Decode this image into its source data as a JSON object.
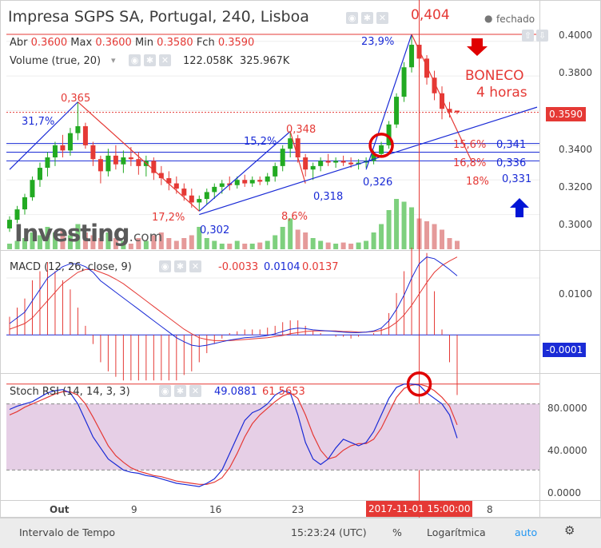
{
  "header": {
    "title": "Impresa SGPS SA, Portugal, 240, Lisboa",
    "status": "fechado",
    "ohlc": {
      "o_label": "Abr",
      "o": "0.3600",
      "h_label": "Max",
      "h": "0.3600",
      "l_label": "Min",
      "l": "0.3580",
      "c_label": "Fch",
      "c": "0.3590"
    },
    "volume_label": "Volume (true, 20)",
    "volume_v1": "122.058K",
    "volume_v2": "325.967K",
    "watermark": "Investing",
    "watermark_suffix": ".com"
  },
  "macd": {
    "label": "MACD (12, 26, close, 9)",
    "v1": "-0.0033",
    "v2": "0.0104",
    "v3": "0.0137"
  },
  "stoch": {
    "label": "Stoch RSI (14, 14, 3, 3)",
    "v1": "49.0881",
    "v2": "61.5653"
  },
  "annotations": {
    "peak_high": "0,404",
    "pct_a": "31,7%",
    "pct_b": "17,2%",
    "pct_c": "15,2%",
    "pct_d": "8,6%",
    "pct_e": "23,9%",
    "level_365": "0,365",
    "level_302": "0,302",
    "level_348": "0,348",
    "level_318": "0,318",
    "level_326": "0,326",
    "boneco_1": "BONECO",
    "boneco_2": "4 horas",
    "fib_1": "15,6%",
    "fib_1v": "0,341",
    "fib_2": "16,8%",
    "fib_2v": "0,336",
    "fib_3": "18%",
    "fib_3v": "0,331"
  },
  "price_axis": {
    "ticks": [
      "0.4000",
      "0.3800",
      "0.3600",
      "0.3400",
      "0.3200",
      "0.3000"
    ],
    "current": "0.3590"
  },
  "macd_axis": {
    "ticks": [
      "0.0100"
    ],
    "current": "-0.0001"
  },
  "stoch_axis": {
    "ticks": [
      "80.0000",
      "40.0000",
      "0.0000"
    ]
  },
  "time_axis": {
    "ticks": [
      "Out",
      "9",
      "16",
      "23",
      "8"
    ],
    "highlight": "2017-11-01 15:00:00"
  },
  "bottom_bar": {
    "left": "Intervalo de Tempo",
    "time": "15:23:24 (UTC)",
    "pct": "%",
    "log": "Logarítmica",
    "auto": "auto"
  },
  "colors": {
    "up": "#22aa22",
    "down": "#e53935",
    "blue": "#1a2bd6",
    "red": "#e53935",
    "vol_up": "#7ed07e",
    "vol_down": "#e59a9a",
    "stoch_band": "#e6cfe6"
  },
  "chart_data": [
    {
      "type": "candlestick",
      "title": "Impresa SGPS SA, Portugal, 240, Lisboa",
      "ylim": [
        0.28,
        0.41
      ],
      "x_ticks": [
        "Out",
        "9",
        "16",
        "23",
        "8"
      ],
      "candles": [
        {
          "o": 0.292,
          "h": 0.299,
          "l": 0.29,
          "c": 0.297
        },
        {
          "o": 0.297,
          "h": 0.305,
          "l": 0.295,
          "c": 0.303
        },
        {
          "o": 0.303,
          "h": 0.312,
          "l": 0.3,
          "c": 0.31
        },
        {
          "o": 0.31,
          "h": 0.322,
          "l": 0.308,
          "c": 0.32
        },
        {
          "o": 0.32,
          "h": 0.33,
          "l": 0.316,
          "c": 0.327
        },
        {
          "o": 0.327,
          "h": 0.336,
          "l": 0.322,
          "c": 0.333
        },
        {
          "o": 0.333,
          "h": 0.342,
          "l": 0.328,
          "c": 0.34
        },
        {
          "o": 0.34,
          "h": 0.346,
          "l": 0.333,
          "c": 0.337
        },
        {
          "o": 0.337,
          "h": 0.35,
          "l": 0.334,
          "c": 0.347
        },
        {
          "o": 0.347,
          "h": 0.365,
          "l": 0.343,
          "c": 0.351
        },
        {
          "o": 0.351,
          "h": 0.353,
          "l": 0.338,
          "c": 0.34
        },
        {
          "o": 0.34,
          "h": 0.342,
          "l": 0.328,
          "c": 0.332
        },
        {
          "o": 0.332,
          "h": 0.334,
          "l": 0.318,
          "c": 0.325
        },
        {
          "o": 0.325,
          "h": 0.338,
          "l": 0.322,
          "c": 0.334
        },
        {
          "o": 0.334,
          "h": 0.34,
          "l": 0.326,
          "c": 0.329
        },
        {
          "o": 0.329,
          "h": 0.337,
          "l": 0.324,
          "c": 0.333
        },
        {
          "o": 0.333,
          "h": 0.339,
          "l": 0.328,
          "c": 0.332
        },
        {
          "o": 0.332,
          "h": 0.336,
          "l": 0.323,
          "c": 0.328
        },
        {
          "o": 0.328,
          "h": 0.334,
          "l": 0.322,
          "c": 0.331
        },
        {
          "o": 0.331,
          "h": 0.333,
          "l": 0.32,
          "c": 0.324
        },
        {
          "o": 0.324,
          "h": 0.328,
          "l": 0.317,
          "c": 0.321
        },
        {
          "o": 0.321,
          "h": 0.325,
          "l": 0.314,
          "c": 0.318
        },
        {
          "o": 0.318,
          "h": 0.322,
          "l": 0.312,
          "c": 0.315
        },
        {
          "o": 0.315,
          "h": 0.318,
          "l": 0.308,
          "c": 0.311
        },
        {
          "o": 0.311,
          "h": 0.315,
          "l": 0.304,
          "c": 0.307
        },
        {
          "o": 0.307,
          "h": 0.311,
          "l": 0.302,
          "c": 0.309
        },
        {
          "o": 0.309,
          "h": 0.315,
          "l": 0.306,
          "c": 0.313
        },
        {
          "o": 0.313,
          "h": 0.318,
          "l": 0.309,
          "c": 0.316
        },
        {
          "o": 0.316,
          "h": 0.32,
          "l": 0.312,
          "c": 0.318
        },
        {
          "o": 0.318,
          "h": 0.322,
          "l": 0.314,
          "c": 0.317
        },
        {
          "o": 0.317,
          "h": 0.322,
          "l": 0.315,
          "c": 0.32
        },
        {
          "o": 0.32,
          "h": 0.323,
          "l": 0.316,
          "c": 0.318
        },
        {
          "o": 0.318,
          "h": 0.322,
          "l": 0.316,
          "c": 0.32
        },
        {
          "o": 0.32,
          "h": 0.322,
          "l": 0.317,
          "c": 0.319
        },
        {
          "o": 0.319,
          "h": 0.324,
          "l": 0.317,
          "c": 0.322
        },
        {
          "o": 0.322,
          "h": 0.33,
          "l": 0.319,
          "c": 0.328
        },
        {
          "o": 0.328,
          "h": 0.34,
          "l": 0.325,
          "c": 0.338
        },
        {
          "o": 0.338,
          "h": 0.348,
          "l": 0.333,
          "c": 0.344
        },
        {
          "o": 0.344,
          "h": 0.346,
          "l": 0.33,
          "c": 0.333
        },
        {
          "o": 0.333,
          "h": 0.335,
          "l": 0.322,
          "c": 0.326
        },
        {
          "o": 0.326,
          "h": 0.33,
          "l": 0.32,
          "c": 0.328
        },
        {
          "o": 0.328,
          "h": 0.333,
          "l": 0.325,
          "c": 0.331
        },
        {
          "o": 0.331,
          "h": 0.335,
          "l": 0.328,
          "c": 0.33
        },
        {
          "o": 0.33,
          "h": 0.333,
          "l": 0.327,
          "c": 0.331
        },
        {
          "o": 0.331,
          "h": 0.334,
          "l": 0.328,
          "c": 0.33
        },
        {
          "o": 0.33,
          "h": 0.333,
          "l": 0.327,
          "c": 0.329
        },
        {
          "o": 0.329,
          "h": 0.332,
          "l": 0.326,
          "c": 0.33
        },
        {
          "o": 0.33,
          "h": 0.333,
          "l": 0.327,
          "c": 0.331
        },
        {
          "o": 0.331,
          "h": 0.337,
          "l": 0.329,
          "c": 0.335
        },
        {
          "o": 0.335,
          "h": 0.342,
          "l": 0.333,
          "c": 0.34
        },
        {
          "o": 0.34,
          "h": 0.354,
          "l": 0.338,
          "c": 0.352
        },
        {
          "o": 0.352,
          "h": 0.37,
          "l": 0.35,
          "c": 0.368
        },
        {
          "o": 0.368,
          "h": 0.388,
          "l": 0.365,
          "c": 0.385
        },
        {
          "o": 0.385,
          "h": 0.404,
          "l": 0.382,
          "c": 0.398
        },
        {
          "o": 0.398,
          "h": 0.402,
          "l": 0.385,
          "c": 0.39
        },
        {
          "o": 0.39,
          "h": 0.392,
          "l": 0.375,
          "c": 0.379
        },
        {
          "o": 0.379,
          "h": 0.383,
          "l": 0.366,
          "c": 0.37
        },
        {
          "o": 0.37,
          "h": 0.374,
          "l": 0.355,
          "c": 0.361
        },
        {
          "o": 0.361,
          "h": 0.365,
          "l": 0.356,
          "c": 0.359
        },
        {
          "o": 0.36,
          "h": 0.36,
          "l": 0.358,
          "c": 0.359
        }
      ],
      "volume_ratio": [
        0.1,
        0.15,
        0.2,
        0.3,
        0.25,
        0.4,
        0.3,
        0.35,
        0.25,
        0.45,
        0.3,
        0.25,
        0.2,
        0.3,
        0.2,
        0.15,
        0.1,
        0.2,
        0.15,
        0.25,
        0.3,
        0.2,
        0.15,
        0.2,
        0.25,
        0.4,
        0.2,
        0.15,
        0.1,
        0.1,
        0.15,
        0.1,
        0.1,
        0.12,
        0.15,
        0.25,
        0.4,
        0.55,
        0.35,
        0.3,
        0.2,
        0.15,
        0.12,
        0.1,
        0.12,
        0.1,
        0.12,
        0.15,
        0.3,
        0.45,
        0.7,
        0.9,
        0.85,
        0.75,
        0.55,
        0.5,
        0.45,
        0.35,
        0.2,
        0.15
      ]
    },
    {
      "type": "line",
      "title": "MACD (12, 26, close, 9)",
      "ylim": [
        -0.006,
        0.0145
      ],
      "series": [
        {
          "name": "MACD",
          "values": [
            0.002,
            0.003,
            0.004,
            0.006,
            0.008,
            0.01,
            0.011,
            0.012,
            0.0125,
            0.0125,
            0.012,
            0.011,
            0.0095,
            0.0085,
            0.0075,
            0.0065,
            0.0055,
            0.0045,
            0.0035,
            0.0025,
            0.0015,
            0.0005,
            -0.0005,
            -0.0012,
            -0.0018,
            -0.002,
            -0.0018,
            -0.0015,
            -0.0012,
            -0.0009,
            -0.0007,
            -0.0005,
            -0.0004,
            -0.0003,
            -0.0001,
            0.0002,
            0.0006,
            0.001,
            0.0012,
            0.0011,
            0.0009,
            0.0008,
            0.0007,
            0.0006,
            0.0005,
            0.0004,
            0.0004,
            0.0005,
            0.0007,
            0.0012,
            0.0025,
            0.0045,
            0.007,
            0.01,
            0.0125,
            0.0137,
            0.0134,
            0.0125,
            0.0115,
            0.0104
          ]
        },
        {
          "name": "Signal",
          "values": [
            0.001,
            0.0015,
            0.002,
            0.003,
            0.0045,
            0.006,
            0.0075,
            0.009,
            0.01,
            0.011,
            0.0115,
            0.0115,
            0.011,
            0.0105,
            0.0098,
            0.009,
            0.008,
            0.007,
            0.006,
            0.005,
            0.004,
            0.003,
            0.002,
            0.001,
            0.0002,
            -0.0005,
            -0.0008,
            -0.001,
            -0.001,
            -0.001,
            -0.0009,
            -0.0008,
            -0.0007,
            -0.0006,
            -0.0005,
            -0.0003,
            -0.0001,
            0.0002,
            0.0004,
            0.0006,
            0.0007,
            0.0007,
            0.0007,
            0.0007,
            0.0006,
            0.0006,
            0.0005,
            0.0005,
            0.0006,
            0.0008,
            0.0013,
            0.0022,
            0.0035,
            0.0052,
            0.0072,
            0.0092,
            0.011,
            0.0122,
            0.013,
            0.0137
          ]
        }
      ]
    },
    {
      "type": "line",
      "title": "Stoch RSI (14, 14, 3, 3)",
      "ylim": [
        0,
        100
      ],
      "band": [
        20,
        80
      ],
      "series": [
        {
          "name": "K",
          "values": [
            75,
            78,
            80,
            82,
            86,
            90,
            92,
            93,
            90,
            80,
            65,
            50,
            40,
            30,
            25,
            20,
            18,
            17,
            15,
            14,
            12,
            10,
            8,
            7,
            6,
            5,
            8,
            12,
            20,
            35,
            50,
            65,
            72,
            75,
            80,
            88,
            92,
            90,
            70,
            45,
            30,
            25,
            30,
            40,
            48,
            45,
            42,
            45,
            55,
            70,
            85,
            95,
            98,
            98,
            97,
            90,
            85,
            80,
            70,
            49
          ]
        },
        {
          "name": "D",
          "values": [
            70,
            73,
            77,
            80,
            83,
            86,
            89,
            91,
            91,
            88,
            80,
            68,
            55,
            42,
            33,
            27,
            22,
            19,
            17,
            15,
            14,
            12,
            10,
            9,
            8,
            7,
            7,
            9,
            13,
            22,
            35,
            50,
            62,
            70,
            76,
            82,
            87,
            90,
            85,
            70,
            52,
            38,
            30,
            32,
            38,
            42,
            44,
            44,
            48,
            58,
            72,
            86,
            94,
            97,
            98,
            96,
            92,
            86,
            78,
            61
          ]
        }
      ]
    }
  ]
}
